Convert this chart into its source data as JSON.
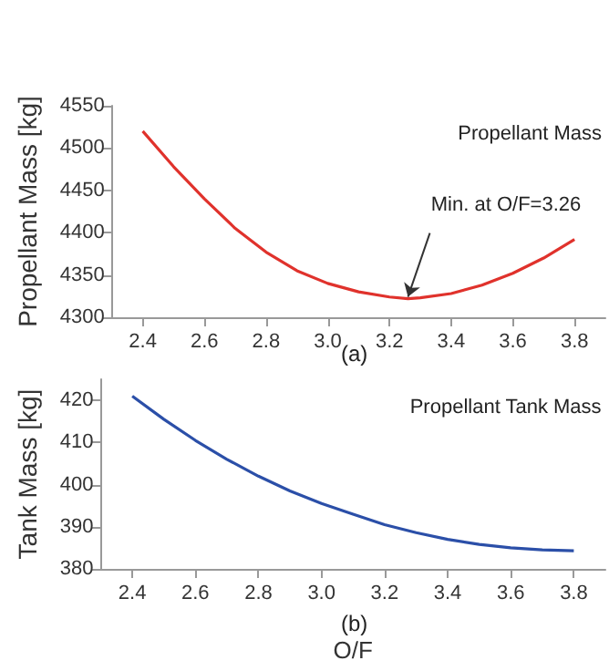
{
  "chart_data": [
    {
      "type": "line",
      "title": "Propellant Mass",
      "ylabel": "Propellant Mass [kg]",
      "x": [
        2.4,
        2.5,
        2.6,
        2.7,
        2.8,
        2.9,
        3.0,
        3.1,
        3.2,
        3.26,
        3.3,
        3.4,
        3.5,
        3.6,
        3.7,
        3.8
      ],
      "series": [
        {
          "color": "#e0322c",
          "values": [
            4520,
            4478,
            4440,
            4405,
            4377,
            4355,
            4340,
            4330,
            4324,
            4322,
            4323,
            4328,
            4338,
            4352,
            4370,
            4392
          ]
        }
      ],
      "xlim": [
        2.3,
        3.9
      ],
      "xticks": [
        2.4,
        2.6,
        2.8,
        {
          "value": 3,
          "label": "3.0"
        },
        3.2,
        3.4,
        3.6,
        3.8
      ],
      "ylim": [
        4300,
        4550
      ],
      "yticks": [
        4300,
        4350,
        4400,
        4450,
        4500,
        4550
      ],
      "grid": false,
      "marker": "none",
      "line_style": "solid",
      "annotations": [
        "(a)",
        {
          "text": "Min. at O/F=3.26",
          "x": 3.26,
          "y": 4322
        }
      ]
    },
    {
      "type": "line",
      "title": "Propellant Tank Mass",
      "ylabel": "Tank Mass [kg]",
      "xlabel": "O/F",
      "x": [
        2.4,
        2.5,
        2.6,
        2.7,
        2.8,
        2.9,
        3.0,
        3.1,
        3.2,
        3.3,
        3.4,
        3.5,
        3.6,
        3.7,
        3.8
      ],
      "series": [
        {
          "color": "#2b4fa8",
          "values": [
            421,
            415.5,
            410.5,
            406,
            402,
            398.5,
            395.5,
            393,
            390.5,
            388.6,
            387,
            385.8,
            385,
            384.5,
            384.3
          ]
        }
      ],
      "xlim": [
        2.3,
        3.9
      ],
      "xticks": [
        2.4,
        2.6,
        2.8,
        {
          "value": 3,
          "label": "3.0"
        },
        3.2,
        3.4,
        3.6,
        3.8
      ],
      "ylim": [
        380,
        425
      ],
      "yticks": [
        380,
        390,
        400,
        410,
        420
      ],
      "grid": false,
      "marker": "none",
      "line_style": "solid",
      "annotations": [
        "(b)"
      ]
    }
  ]
}
